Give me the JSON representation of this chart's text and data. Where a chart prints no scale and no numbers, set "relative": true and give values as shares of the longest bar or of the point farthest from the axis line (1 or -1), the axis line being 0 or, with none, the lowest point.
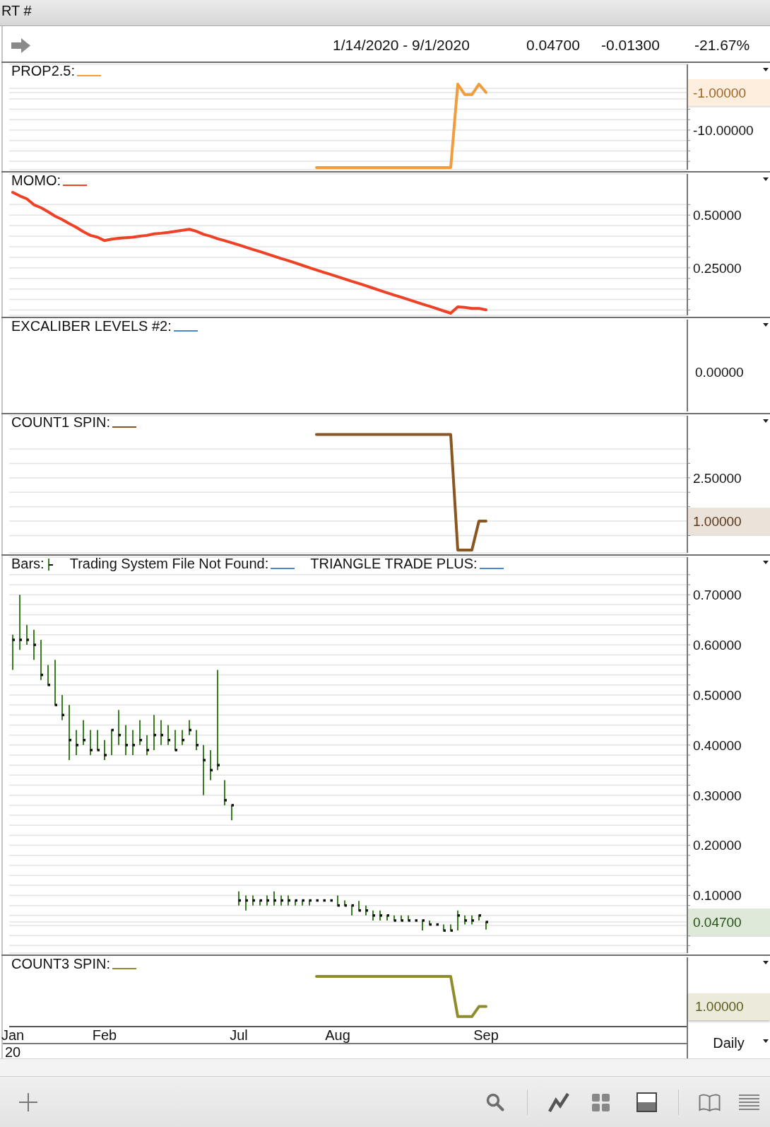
{
  "chart_data": [
    {
      "type": "line",
      "title": "1/14/2020 - 9/1/2020",
      "annotations": [
        "RT #",
        "0.04700",
        "-0.01300",
        "-21.67%"
      ],
      "categories": [
        null,
        null,
        null,
        null,
        null,
        null,
        null,
        null,
        null,
        null,
        null,
        null,
        null,
        null,
        null,
        null,
        null,
        null,
        null,
        null,
        null,
        null,
        null,
        null,
        null,
        null,
        null,
        null,
        null,
        null,
        null,
        null,
        null,
        null,
        null,
        null,
        null,
        null,
        null,
        null,
        null,
        null,
        null,
        null,
        null,
        null,
        null,
        null,
        null,
        null,
        null,
        null,
        null,
        null,
        null,
        null,
        null,
        null,
        null,
        null,
        null,
        null,
        null,
        null,
        null,
        null,
        null,
        null,
        null,
        null,
        null,
        null,
        null,
        null,
        null,
        null,
        null,
        null,
        null,
        null,
        null,
        null,
        null,
        null,
        null,
        null,
        null,
        null,
        null,
        null,
        null,
        null,
        null,
        null,
        null,
        null
      ],
      "series": [
        {
          "name": "PROP2.5:",
          "color": "#f19d3e",
          "values": [
            null,
            null,
            null,
            null,
            null,
            null,
            null,
            null,
            null,
            null,
            null,
            null,
            null,
            null,
            null,
            null,
            null,
            null,
            null,
            null,
            null,
            null,
            null,
            null,
            null,
            null,
            null,
            null,
            null,
            null,
            null,
            null,
            null,
            null,
            null,
            null,
            null,
            null,
            null,
            null,
            null,
            null,
            null,
            -19,
            -19,
            -19,
            -19,
            -19,
            -19,
            -19,
            -19,
            -19,
            -19,
            -19,
            -19,
            -19,
            -19,
            -19,
            -19,
            -19,
            -19,
            -19,
            -19,
            1,
            -1.5,
            -1.5,
            1,
            -1,
            null,
            null,
            null,
            null,
            null,
            null,
            null,
            null,
            null,
            null,
            null,
            null,
            null,
            null,
            null,
            null,
            null,
            null,
            null,
            null,
            null,
            null,
            null,
            null,
            null,
            null,
            null,
            null
          ]
        }
      ],
      "ylim": [
        -19.5,
        5.75
      ],
      "yticks": [
        {
          "value": 0,
          "label": null
        },
        {
          "value": -1,
          "label": "-1.00000"
        },
        {
          "value": -2.5,
          "label": null
        },
        {
          "value": -5,
          "label": null
        },
        {
          "value": -7.5,
          "label": null
        },
        {
          "value": -10,
          "label": "-10.00000"
        },
        {
          "value": -12.5,
          "label": null
        },
        {
          "value": -15,
          "label": null
        },
        {
          "value": -17.5,
          "label": null
        }
      ],
      "grid": "y",
      "legend": "top left",
      "tick_labels": "y"
    },
    {
      "type": "line",
      "categories": [
        null,
        null,
        null,
        null,
        null,
        null,
        null,
        null,
        null,
        null,
        null,
        null,
        null,
        null,
        null,
        null,
        null,
        null,
        null,
        null,
        null,
        null,
        null,
        null,
        null,
        null,
        null,
        null,
        null,
        null,
        null,
        null,
        null,
        null,
        null,
        null,
        null,
        null,
        null,
        null,
        null,
        null,
        null,
        null,
        null,
        null,
        null,
        null,
        null,
        null,
        null,
        null,
        null,
        null,
        null,
        null,
        null,
        null,
        null,
        null,
        null,
        null,
        null,
        null,
        null,
        null,
        null,
        null,
        null,
        null,
        null,
        null,
        null,
        null,
        null,
        null,
        null,
        null,
        null,
        null,
        null,
        null,
        null,
        null,
        null,
        null,
        null,
        null,
        null,
        null,
        null,
        null,
        null,
        null,
        null,
        null
      ],
      "series": [
        {
          "name": "MOMO:",
          "color": "#ee4125",
          "values": [
            0.608,
            0.591,
            0.577,
            0.549,
            0.535,
            0.516,
            0.495,
            0.479,
            0.46,
            0.442,
            0.421,
            0.404,
            0.395,
            0.379,
            0.386,
            0.39,
            0.393,
            0.395,
            0.4,
            0.404,
            0.411,
            0.414,
            0.418,
            0.423,
            0.428,
            0.433,
            0.423,
            0.409,
            0.4,
            0.388,
            0.379,
            0.369,
            0.359,
            0.348,
            0.337,
            0.327,
            0.316,
            0.305,
            0.294,
            0.284,
            0.273,
            0.262,
            0.251,
            0.24,
            0.229,
            0.219,
            0.208,
            0.197,
            0.186,
            0.176,
            0.165,
            0.154,
            0.143,
            0.132,
            0.121,
            0.111,
            0.1,
            0.089,
            0.078,
            0.068,
            0.057,
            0.046,
            0.035,
            0.065,
            0.063,
            0.058,
            0.058,
            0.051,
            null,
            null,
            null,
            null,
            null,
            null,
            null,
            null,
            null,
            null,
            null,
            null,
            null,
            null,
            null,
            null,
            null,
            null,
            null,
            null,
            null,
            null,
            null,
            null,
            null,
            null,
            null,
            null
          ]
        }
      ],
      "ylim": [
        0.025,
        0.695
      ],
      "yticks": [
        {
          "value": 0.05,
          "label": null
        },
        {
          "value": 0.1,
          "label": null
        },
        {
          "value": 0.15,
          "label": null
        },
        {
          "value": 0.2,
          "label": null
        },
        {
          "value": 0.25,
          "label": "0.25000"
        },
        {
          "value": 0.3,
          "label": null
        },
        {
          "value": 0.35,
          "label": null
        },
        {
          "value": 0.4,
          "label": null
        },
        {
          "value": 0.45,
          "label": null
        },
        {
          "value": 0.5,
          "label": "0.50000"
        },
        {
          "value": 0.55,
          "label": null
        }
      ],
      "grid": "y",
      "legend": "top left",
      "tick_labels": "y"
    },
    {
      "type": "other",
      "annotations": [
        "0.00000"
      ],
      "series": [
        {
          "name": "EXCALIBER LEVELS #2:",
          "color": "#4a86c8"
        }
      ],
      "legend": "top left"
    },
    {
      "type": "line",
      "categories": [
        null,
        null,
        null,
        null,
        null,
        null,
        null,
        null,
        null,
        null,
        null,
        null,
        null,
        null,
        null,
        null,
        null,
        null,
        null,
        null,
        null,
        null,
        null,
        null,
        null,
        null,
        null,
        null,
        null,
        null,
        null,
        null,
        null,
        null,
        null,
        null,
        null,
        null,
        null,
        null,
        null,
        null,
        null,
        null,
        null,
        null,
        null,
        null,
        null,
        null,
        null,
        null,
        null,
        null,
        null,
        null,
        null,
        null,
        null,
        null,
        null,
        null,
        null,
        null,
        null,
        null,
        null,
        null,
        null,
        null,
        null,
        null,
        null,
        null,
        null,
        null,
        null,
        null,
        null,
        null,
        null,
        null,
        null,
        null,
        null,
        null,
        null,
        null,
        null,
        null,
        null,
        null,
        null,
        null,
        null,
        null
      ],
      "series": [
        {
          "name": "COUNT1 SPIN:",
          "color": "#8a5520",
          "values": [
            null,
            null,
            null,
            null,
            null,
            null,
            null,
            null,
            null,
            null,
            null,
            null,
            null,
            null,
            null,
            null,
            null,
            null,
            null,
            null,
            null,
            null,
            null,
            null,
            null,
            null,
            null,
            null,
            null,
            null,
            null,
            null,
            null,
            null,
            null,
            null,
            null,
            null,
            null,
            null,
            null,
            null,
            null,
            4,
            4,
            4,
            4,
            4,
            4,
            4,
            4,
            4,
            4,
            4,
            4,
            4,
            4,
            4,
            4,
            4,
            4,
            4,
            4,
            0,
            0,
            0,
            1,
            1,
            null,
            null,
            null,
            null,
            null,
            null,
            null,
            null,
            null,
            null,
            null,
            null,
            null,
            null,
            null,
            null,
            null,
            null,
            null,
            null,
            null,
            null,
            null,
            null,
            null,
            null,
            null,
            null
          ]
        }
      ],
      "ylim": [
        -0.1,
        4.65
      ],
      "yticks": [
        {
          "value": 0.5,
          "label": null
        },
        {
          "value": 1,
          "label": "1.00000"
        },
        {
          "value": 1.5,
          "label": null
        },
        {
          "value": 2,
          "label": null
        },
        {
          "value": 2.5,
          "label": "2.50000"
        },
        {
          "value": 3,
          "label": null
        },
        {
          "value": 3.5,
          "label": null
        }
      ],
      "grid": "y",
      "legend": "top left",
      "tick_labels": "y"
    },
    {
      "type": "bar",
      "categories": [
        null,
        null,
        null,
        null,
        null,
        null,
        null,
        null,
        null,
        null,
        null,
        null,
        null,
        null,
        null,
        null,
        null,
        null,
        null,
        null,
        null,
        null,
        null,
        null,
        null,
        null,
        null,
        null,
        null,
        null,
        null,
        null,
        null,
        null,
        null,
        null,
        null,
        null,
        null,
        null,
        null,
        null,
        null,
        null,
        null,
        null,
        null,
        null,
        null,
        null,
        null,
        null,
        null,
        null,
        null,
        null,
        null,
        null,
        null,
        null,
        null,
        null,
        null,
        null,
        null,
        null,
        null,
        null,
        null,
        null,
        null,
        null,
        null,
        null,
        null,
        null,
        null,
        null,
        null,
        null,
        null,
        null,
        null,
        null,
        null,
        null,
        null,
        null,
        null,
        null,
        null,
        null,
        null,
        null,
        null,
        null
      ],
      "series": [
        {
          "name": "Bars:",
          "color": "#3a7d22",
          "base": [
            0.55,
            0.59,
            0.6,
            0.57,
            0.53,
            0.52,
            0.48,
            0.45,
            0.37,
            0.38,
            0.4,
            0.38,
            0.39,
            0.37,
            0.38,
            0.4,
            0.38,
            0.38,
            0.4,
            0.38,
            0.39,
            0.4,
            0.4,
            0.39,
            0.4,
            0.42,
            0.39,
            0.3,
            0.33,
            0.35,
            0.28,
            0.25,
            0.08,
            0.07,
            0.08,
            0.08,
            0.08,
            0.08,
            0.08,
            0.08,
            0.08,
            0.08,
            0.08,
            null,
            null,
            null,
            0.08,
            0.08,
            0.06,
            0.07,
            0.06,
            0.05,
            0.05,
            0.05,
            0.05,
            0.05,
            0.05,
            null,
            0.03,
            0.042,
            null,
            0.03,
            0.03,
            0.03,
            0.042,
            0.042,
            0.05,
            0.032,
            null,
            null,
            null,
            null,
            null,
            null,
            null,
            null,
            null,
            null,
            null,
            null,
            null,
            null,
            null,
            null,
            null,
            null,
            null,
            null,
            null,
            null,
            null,
            null,
            null,
            null,
            null,
            null
          ],
          "values": [
            0.07,
            0.11,
            0.04,
            0.06,
            0.08,
            0.04,
            0.09,
            0.05,
            0.11,
            0.05,
            0.05,
            0.05,
            0.04,
            0.04,
            0.05,
            0.07,
            0.06,
            0.05,
            0.05,
            0.04,
            0.07,
            0.05,
            0.04,
            0.04,
            0.03,
            0.03,
            0.04,
            0.1,
            0.06,
            0.2,
            0.05,
            0.03,
            0.028,
            0.03,
            0.02,
            0.01,
            0.02,
            0.028,
            0.02,
            0.02,
            0.01,
            0.01,
            0.01,
            null,
            null,
            null,
            0.02,
            0.01,
            0.02,
            0.019,
            0.02,
            0.02,
            0.02,
            0.01,
            0.01,
            0.01,
            0.01,
            null,
            0.02,
            0.008,
            null,
            0.012,
            0.012,
            0.04,
            0.018,
            0.018,
            0.01,
            0.015,
            null,
            null,
            null,
            null,
            null,
            null,
            null,
            null,
            null,
            null,
            null,
            null,
            null,
            null,
            null,
            null,
            null,
            null,
            null,
            null,
            null,
            null,
            null,
            null,
            null,
            null,
            null,
            null
          ]
        },
        {
          "type": "scatter",
          "color": "#111111",
          "marker": "square",
          "values": [
            0.61,
            0.61,
            0.61,
            0.6,
            0.54,
            0.52,
            0.48,
            0.46,
            0.41,
            0.4,
            0.41,
            0.39,
            0.39,
            0.38,
            0.43,
            0.42,
            0.4,
            0.4,
            0.41,
            0.39,
            0.42,
            0.42,
            0.41,
            0.39,
            0.41,
            0.43,
            0.4,
            0.37,
            0.35,
            0.36,
            0.29,
            0.28,
            0.09,
            0.09,
            0.09,
            0.09,
            0.09,
            0.09,
            0.09,
            0.09,
            0.09,
            0.09,
            0.09,
            0.09,
            0.09,
            0.09,
            0.08,
            0.08,
            0.08,
            0.07,
            0.07,
            0.06,
            0.06,
            0.06,
            0.05,
            0.05,
            0.05,
            0.05,
            0.05,
            0.042,
            0.042,
            0.03,
            0.03,
            0.06,
            0.05,
            0.05,
            0.06,
            0.047,
            null,
            null,
            null,
            null,
            null,
            null,
            null,
            null,
            null,
            null,
            null,
            null,
            null,
            null,
            null,
            null,
            null,
            null,
            null,
            null,
            null,
            null,
            null,
            null,
            null,
            null,
            null,
            null
          ]
        },
        {
          "name": "Trading System File Not Found:",
          "color": "#4a86c8",
          "type": "line",
          "values": [
            null,
            null,
            null,
            null,
            null,
            null,
            null,
            null,
            null,
            null,
            null,
            null,
            null,
            null,
            null,
            null,
            null,
            null,
            null,
            null,
            null,
            null,
            null,
            null,
            null,
            null,
            null,
            null,
            null,
            null,
            null,
            null,
            null,
            null,
            null,
            null,
            null,
            null,
            null,
            null,
            null,
            null,
            null,
            null,
            null,
            null,
            null,
            null,
            null,
            null,
            null,
            null,
            null,
            null,
            null,
            null,
            null,
            null,
            null,
            null,
            null,
            null,
            null,
            null,
            null,
            null,
            null,
            null,
            null,
            null,
            null,
            null,
            null,
            null,
            null,
            null,
            null,
            null,
            null,
            null,
            null,
            null,
            null,
            null,
            null,
            null,
            null,
            null,
            null,
            null,
            null,
            null,
            null,
            null,
            null,
            null
          ]
        },
        {
          "name": "TRIANGLE TRADE PLUS:",
          "color": "#4a86c8",
          "type": "line",
          "values": [
            null,
            null,
            null,
            null,
            null,
            null,
            null,
            null,
            null,
            null,
            null,
            null,
            null,
            null,
            null,
            null,
            null,
            null,
            null,
            null,
            null,
            null,
            null,
            null,
            null,
            null,
            null,
            null,
            null,
            null,
            null,
            null,
            null,
            null,
            null,
            null,
            null,
            null,
            null,
            null,
            null,
            null,
            null,
            null,
            null,
            null,
            null,
            null,
            null,
            null,
            null,
            null,
            null,
            null,
            null,
            null,
            null,
            null,
            null,
            null,
            null,
            null,
            null,
            null,
            null,
            null,
            null,
            null,
            null,
            null,
            null,
            null,
            null,
            null,
            null,
            null,
            null,
            null,
            null,
            null,
            null,
            null,
            null,
            null,
            null,
            null,
            null,
            null,
            null,
            null,
            null,
            null,
            null,
            null,
            null,
            null
          ]
        }
      ],
      "ylim": [
        -0.015,
        0.775
      ],
      "yticks": [
        {
          "value": 0,
          "label": null
        },
        {
          "value": 0.02,
          "label": null
        },
        {
          "value": 0.04,
          "label": null
        },
        {
          "value": 0.047,
          "label": "0.04700"
        },
        {
          "value": 0.06,
          "label": null
        },
        {
          "value": 0.08,
          "label": null
        },
        {
          "value": 0.1,
          "label": "0.10000"
        },
        {
          "value": 0.12,
          "label": null
        },
        {
          "value": 0.14,
          "label": null
        },
        {
          "value": 0.16,
          "label": null
        },
        {
          "value": 0.18,
          "label": null
        },
        {
          "value": 0.2,
          "label": "0.20000"
        },
        {
          "value": 0.22,
          "label": null
        },
        {
          "value": 0.24,
          "label": null
        },
        {
          "value": 0.26,
          "label": null
        },
        {
          "value": 0.28,
          "label": null
        },
        {
          "value": 0.3,
          "label": "0.30000"
        },
        {
          "value": 0.32,
          "label": null
        },
        {
          "value": 0.34,
          "label": null
        },
        {
          "value": 0.36,
          "label": null
        },
        {
          "value": 0.38,
          "label": null
        },
        {
          "value": 0.4,
          "label": "0.40000"
        },
        {
          "value": 0.42,
          "label": null
        },
        {
          "value": 0.44,
          "label": null
        },
        {
          "value": 0.46,
          "label": null
        },
        {
          "value": 0.48,
          "label": null
        },
        {
          "value": 0.5,
          "label": "0.50000"
        },
        {
          "value": 0.52,
          "label": null
        },
        {
          "value": 0.54,
          "label": null
        },
        {
          "value": 0.56,
          "label": null
        },
        {
          "value": 0.58,
          "label": null
        },
        {
          "value": 0.6,
          "label": "0.60000"
        },
        {
          "value": 0.62,
          "label": null
        },
        {
          "value": 0.64,
          "label": null
        },
        {
          "value": 0.66,
          "label": null
        },
        {
          "value": 0.68,
          "label": null
        },
        {
          "value": 0.7,
          "label": "0.70000"
        },
        {
          "value": 0.72,
          "label": null
        },
        {
          "value": 0.74,
          "label": null
        }
      ],
      "grid": "y",
      "legend": "top left",
      "tick_labels": "y"
    },
    {
      "type": "line",
      "relative": true,
      "annotations": [
        "20",
        "Daily",
        "1.00000"
      ],
      "categories": [
        "Jan",
        null,
        null,
        null,
        null,
        null,
        null,
        null,
        null,
        null,
        null,
        null,
        null,
        "Feb",
        null,
        null,
        null,
        null,
        null,
        null,
        null,
        null,
        null,
        null,
        null,
        null,
        null,
        null,
        null,
        null,
        null,
        null,
        "Jul",
        null,
        null,
        null,
        null,
        null,
        null,
        null,
        null,
        null,
        null,
        null,
        null,
        null,
        "Aug",
        null,
        null,
        null,
        null,
        null,
        null,
        null,
        null,
        null,
        null,
        null,
        null,
        null,
        null,
        null,
        null,
        null,
        null,
        null,
        null,
        "Sep",
        null,
        null,
        null,
        null,
        null,
        null,
        null,
        null,
        null,
        null,
        null,
        null,
        null,
        null,
        null,
        null,
        null,
        null,
        null,
        null,
        null,
        null,
        null,
        null,
        null,
        null,
        null,
        null
      ],
      "series": [
        {
          "name": "COUNT3 SPIN:",
          "color": "#8e8c2c",
          "values": [
            null,
            null,
            null,
            null,
            null,
            null,
            null,
            null,
            null,
            null,
            null,
            null,
            null,
            null,
            null,
            null,
            null,
            null,
            null,
            null,
            null,
            null,
            null,
            null,
            null,
            null,
            null,
            null,
            null,
            null,
            null,
            null,
            null,
            null,
            null,
            null,
            null,
            null,
            null,
            null,
            null,
            null,
            null,
            1,
            1,
            1,
            1,
            1,
            1,
            1,
            1,
            1,
            1,
            1,
            1,
            1,
            1,
            1,
            1,
            1,
            1,
            1,
            1,
            0.2,
            0.2,
            0.2,
            0.4,
            0.4,
            null,
            null,
            null,
            null,
            null,
            null,
            null,
            null,
            null,
            null,
            null,
            null,
            null,
            null,
            null,
            null,
            null,
            null,
            null,
            null,
            null,
            null,
            null,
            null,
            null,
            null,
            null,
            null
          ]
        }
      ],
      "legend": "top left",
      "tick_labels": "x"
    }
  ]
}
